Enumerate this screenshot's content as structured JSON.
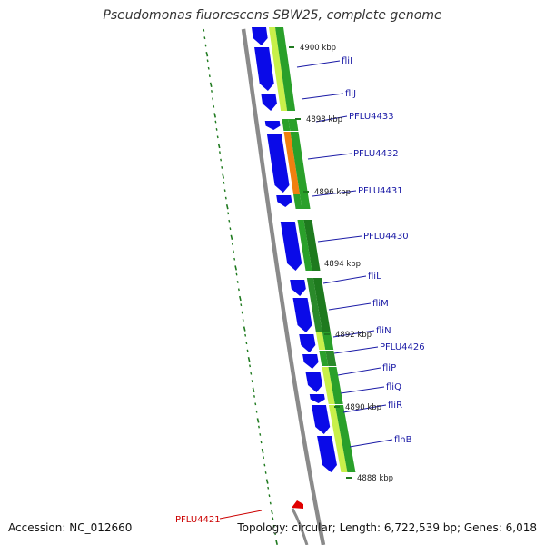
{
  "title": "Pseudomonas fluorescens SBW25, complete genome",
  "footer": {
    "accession": "Accession: NC_012660",
    "summary": "Topology: circular; Length: 6,722,539 bp; Genes: 6,018"
  },
  "colors": {
    "cds": "#0a0ae8",
    "backbone": "#8a8a8a",
    "gc_green": "#2aa02a",
    "gc_light": "#c8f04a",
    "gc_orange": "#f08010",
    "tick": "#1f7a1f",
    "label": "#1a1aa6",
    "highlight": "#cc0000"
  },
  "genes": [
    {
      "label": "fliI"
    },
    {
      "label": "fliJ"
    },
    {
      "label": "PFLU4433"
    },
    {
      "label": "PFLU4432"
    },
    {
      "label": "PFLU4431"
    },
    {
      "label": "PFLU4430"
    },
    {
      "label": "fliL"
    },
    {
      "label": "fliM"
    },
    {
      "label": "fliN"
    },
    {
      "label": "PFLU4426"
    },
    {
      "label": "fliP"
    },
    {
      "label": "fliQ"
    },
    {
      "label": "fliR"
    },
    {
      "label": "flhB"
    }
  ],
  "highlight_gene": {
    "label": "PFLU4421"
  },
  "scale_ticks": [
    "4900 kbp",
    "4898 kbp",
    "4896 kbp",
    "4894 kbp",
    "4892 kbp",
    "4890 kbp",
    "4888 kbp"
  ]
}
